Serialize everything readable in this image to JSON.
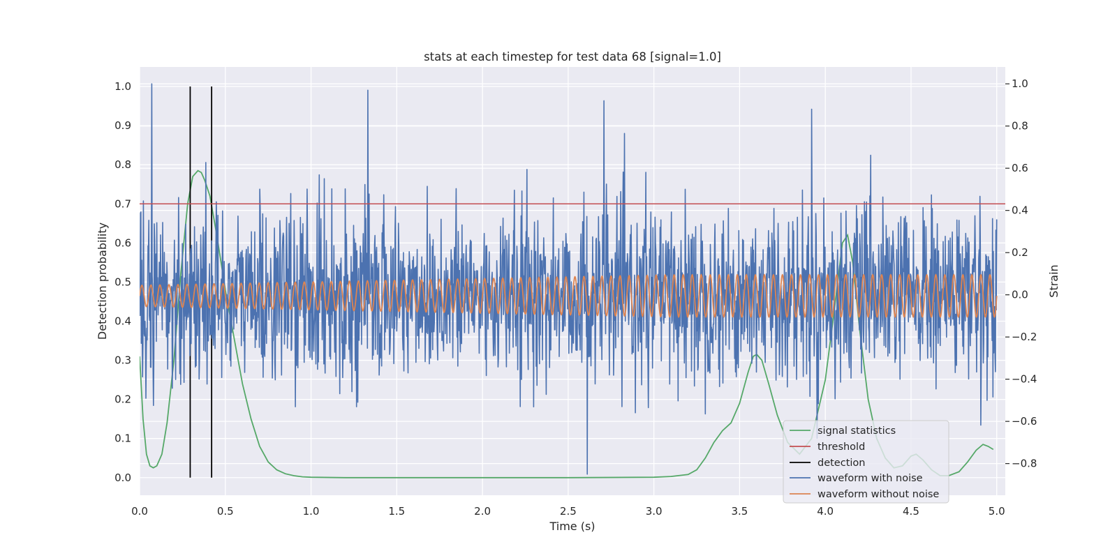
{
  "chart_data": {
    "type": "line",
    "title": "stats at each timestep for test data 68 [signal=1.0]",
    "xlabel": "Time (s)",
    "ylabel": "Detection probability",
    "ylabel_right": "Strain",
    "xlim": [
      0.0,
      5.05
    ],
    "ylim": [
      -0.045,
      1.05
    ],
    "ylim_right": [
      -0.95,
      1.08
    ],
    "x_ticks": [
      0.0,
      0.5,
      1.0,
      1.5,
      2.0,
      2.5,
      3.0,
      3.5,
      4.0,
      4.5,
      5.0
    ],
    "x_tick_labels": [
      "0.0",
      "0.5",
      "1.0",
      "1.5",
      "2.0",
      "2.5",
      "3.0",
      "3.5",
      "4.0",
      "4.5",
      "5.0"
    ],
    "y_ticks": [
      0.0,
      0.1,
      0.2,
      0.3,
      0.4,
      0.5,
      0.6,
      0.7,
      0.8,
      0.9,
      1.0
    ],
    "y_tick_labels": [
      "0.0",
      "0.1",
      "0.2",
      "0.3",
      "0.4",
      "0.5",
      "0.6",
      "0.7",
      "0.8",
      "0.9",
      "1.0"
    ],
    "y_right_ticks": [
      -0.8,
      -0.6,
      -0.4,
      -0.2,
      0.0,
      0.2,
      0.4,
      0.6,
      0.8,
      1.0
    ],
    "y_right_tick_labels": [
      "−0.8",
      "−0.6",
      "−0.4",
      "−0.2",
      "0.0",
      "0.2",
      "0.4",
      "0.6",
      "0.8",
      "1.0"
    ],
    "grid": true,
    "legend_position": "bottom-right",
    "series": [
      {
        "name": "signal statistics",
        "axis": "left",
        "color": "#55a868",
        "x": [
          0.0,
          0.02,
          0.04,
          0.06,
          0.08,
          0.1,
          0.13,
          0.16,
          0.2,
          0.24,
          0.28,
          0.31,
          0.34,
          0.36,
          0.38,
          0.41,
          0.45,
          0.5,
          0.55,
          0.6,
          0.65,
          0.7,
          0.75,
          0.8,
          0.85,
          0.9,
          0.95,
          1.0,
          1.2,
          1.5,
          2.0,
          2.5,
          3.0,
          3.1,
          3.2,
          3.25,
          3.3,
          3.35,
          3.4,
          3.45,
          3.5,
          3.55,
          3.58,
          3.6,
          3.63,
          3.67,
          3.72,
          3.78,
          3.85,
          3.92,
          4.0,
          4.05,
          4.1,
          4.13,
          4.16,
          4.2,
          4.25,
          4.3,
          4.35,
          4.4,
          4.45,
          4.5,
          4.53,
          4.57,
          4.62,
          4.67,
          4.72,
          4.78,
          4.83,
          4.88,
          4.92,
          4.95,
          4.98
        ],
        "values": [
          0.31,
          0.15,
          0.06,
          0.03,
          0.025,
          0.03,
          0.06,
          0.14,
          0.3,
          0.52,
          0.7,
          0.77,
          0.785,
          0.78,
          0.76,
          0.72,
          0.62,
          0.48,
          0.36,
          0.24,
          0.15,
          0.08,
          0.04,
          0.02,
          0.01,
          0.005,
          0.002,
          0.001,
          0.0,
          0.0,
          0.0,
          0.0,
          0.001,
          0.003,
          0.008,
          0.02,
          0.05,
          0.09,
          0.12,
          0.14,
          0.19,
          0.27,
          0.31,
          0.315,
          0.3,
          0.24,
          0.16,
          0.09,
          0.06,
          0.1,
          0.25,
          0.42,
          0.6,
          0.62,
          0.55,
          0.38,
          0.2,
          0.1,
          0.05,
          0.025,
          0.03,
          0.055,
          0.06,
          0.045,
          0.02,
          0.005,
          0.005,
          0.015,
          0.04,
          0.07,
          0.085,
          0.08,
          0.072
        ]
      },
      {
        "name": "threshold",
        "axis": "left",
        "color": "#c44e52",
        "value": 0.7
      },
      {
        "name": "detection",
        "axis": "left",
        "color": "#000000",
        "x": [
          0.295,
          0.42
        ],
        "y_range": [
          0.0,
          1.0
        ]
      },
      {
        "name": "waveform with noise",
        "axis": "right",
        "color": "#4c72b0",
        "x_range": [
          0.0,
          5.0
        ],
        "n_points": 2048,
        "std": 0.2,
        "notable_peaks": [
          {
            "x": 0.07,
            "y": 1.0
          },
          {
            "x": 1.33,
            "y": 0.97
          },
          {
            "x": 2.71,
            "y": 0.92
          },
          {
            "x": 3.92,
            "y": 0.88
          },
          {
            "x": 2.61,
            "y": -0.85
          }
        ]
      },
      {
        "name": "waveform without noise",
        "axis": "right",
        "color": "#dd8452",
        "x_range": [
          0.0,
          5.0
        ],
        "cycles": 95,
        "amplitude_start": 0.05,
        "amplitude_end": 0.1,
        "offset": -0.005
      }
    ]
  }
}
